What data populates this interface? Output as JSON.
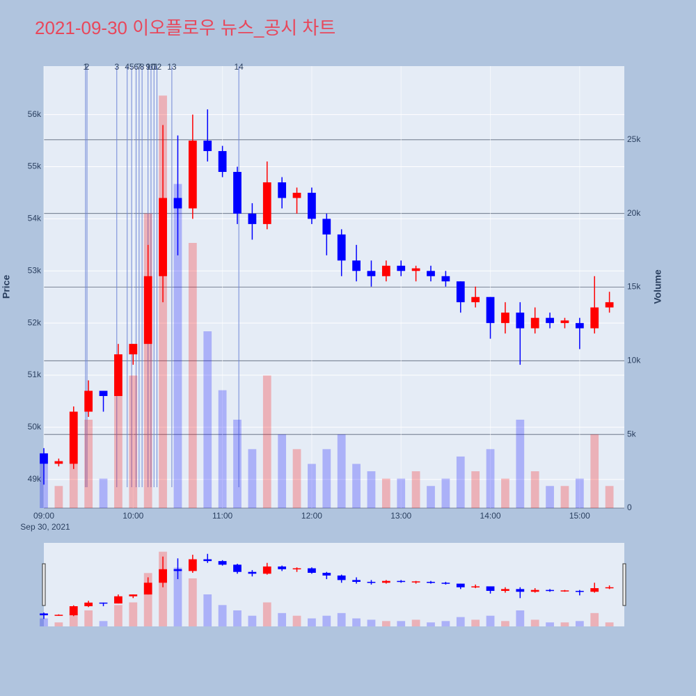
{
  "chart_data": {
    "type": "candlestick",
    "title": "2021-09-30 이오플로우 뉴스_공시 차트",
    "x": [
      "09:00",
      "09:10",
      "09:20",
      "09:30",
      "09:40",
      "09:50",
      "10:00",
      "10:10",
      "10:20",
      "10:30",
      "10:40",
      "10:50",
      "11:00",
      "11:10",
      "11:20",
      "11:30",
      "11:40",
      "11:50",
      "12:00",
      "12:10",
      "12:20",
      "12:30",
      "12:40",
      "12:50",
      "13:00",
      "13:10",
      "13:20",
      "13:30",
      "13:40",
      "13:50",
      "14:00",
      "14:10",
      "14:20",
      "14:30",
      "14:40",
      "14:50",
      "15:00",
      "15:10",
      "15:20"
    ],
    "open": [
      49500,
      49300,
      49300,
      50300,
      50700,
      50600,
      51400,
      51600,
      52900,
      54400,
      54200,
      55500,
      55300,
      54900,
      54100,
      53900,
      54700,
      54400,
      54500,
      54000,
      53700,
      53200,
      53000,
      52900,
      53100,
      53000,
      53000,
      52900,
      52800,
      52400,
      52500,
      52000,
      52200,
      51900,
      52100,
      52000,
      52000,
      51900,
      52300
    ],
    "high": [
      49600,
      49400,
      50400,
      50900,
      50700,
      51600,
      51600,
      53500,
      55800,
      55600,
      56000,
      56100,
      55400,
      55000,
      54300,
      55100,
      54800,
      54600,
      54600,
      54100,
      53800,
      53500,
      53200,
      53200,
      53200,
      53100,
      53100,
      53000,
      52800,
      52700,
      52500,
      52400,
      52400,
      52300,
      52200,
      52100,
      52100,
      52900,
      52600
    ],
    "low": [
      48900,
      49250,
      49200,
      50200,
      50300,
      50600,
      51200,
      51600,
      52400,
      53300,
      54000,
      55100,
      54800,
      53900,
      53600,
      53800,
      54200,
      54100,
      53900,
      53300,
      52900,
      52800,
      52700,
      52800,
      52900,
      52800,
      52800,
      52700,
      52200,
      52300,
      51700,
      51800,
      51200,
      51800,
      51900,
      51900,
      51500,
      51800,
      52200
    ],
    "close": [
      49300,
      49350,
      50300,
      50700,
      50600,
      51400,
      51600,
      52900,
      54400,
      54200,
      55500,
      55300,
      54900,
      54100,
      53900,
      54700,
      54400,
      54500,
      54000,
      53700,
      53200,
      53000,
      52900,
      53100,
      53000,
      53050,
      52900,
      52800,
      52400,
      52500,
      52000,
      52200,
      51900,
      52100,
      52000,
      52050,
      51900,
      52300,
      52400
    ],
    "volume": [
      3000,
      1500,
      5000,
      6000,
      2000,
      8000,
      9000,
      20000,
      28000,
      22000,
      18000,
      12000,
      8000,
      6000,
      4000,
      9000,
      5000,
      4000,
      3000,
      4000,
      5000,
      3000,
      2500,
      2000,
      2000,
      2500,
      1500,
      2000,
      3500,
      2500,
      4000,
      2000,
      6000,
      2500,
      1500,
      1500,
      2000,
      5000,
      1500
    ],
    "up_color": "#ff0000",
    "down_color": "#0000ff",
    "xlim": [
      "09:00",
      "15:30"
    ],
    "xticks": [
      "09:00",
      "10:00",
      "11:00",
      "12:00",
      "13:00",
      "14:00",
      "15:00"
    ],
    "x_sublabel": "Sep 30, 2021",
    "ylabel": "Price",
    "y2label": "Volume",
    "ylim": [
      48450,
      56930
    ],
    "yticks": [
      {
        "value": 49000,
        "label": "49k"
      },
      {
        "value": 50000,
        "label": "50k"
      },
      {
        "value": 51000,
        "label": "51k"
      },
      {
        "value": 52000,
        "label": "52k"
      },
      {
        "value": 53000,
        "label": "53k"
      },
      {
        "value": 54000,
        "label": "54k"
      },
      {
        "value": 55000,
        "label": "55k"
      },
      {
        "value": 56000,
        "label": "56k"
      }
    ],
    "y2lim": [
      0,
      30000
    ],
    "y2ticks": [
      0,
      {
        "value": 5000,
        "label": "5k"
      },
      {
        "value": 10000,
        "label": "10k"
      },
      {
        "value": 15000,
        "label": "15k"
      },
      {
        "value": 20000,
        "label": "20k"
      },
      {
        "value": 25000,
        "label": "25k"
      }
    ],
    "events": {
      "x": [
        "09:28",
        "09:29",
        "09:49",
        "09:56",
        "09:59",
        "10:02",
        "10:04",
        "10:06",
        "10:10",
        "10:12",
        "10:14",
        "10:16",
        "10:26",
        "11:11"
      ],
      "labels": [
        "1",
        "2",
        "3",
        "4",
        "5",
        "6",
        "7",
        "8",
        "9",
        "10",
        "11",
        "12",
        "13",
        "14"
      ]
    },
    "rangeslider": true
  }
}
